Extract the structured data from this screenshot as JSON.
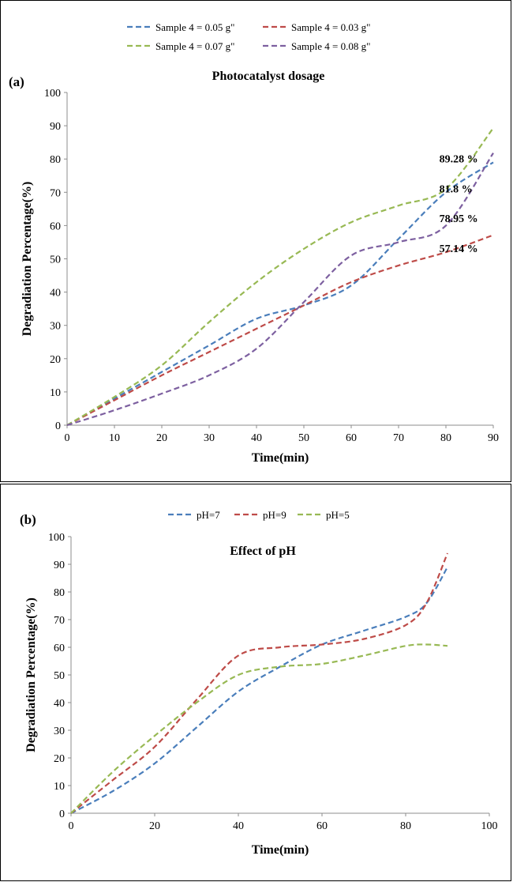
{
  "chart_data": [
    {
      "type": "line",
      "panel_label": "(a)",
      "title": "Photocatalyst dosage",
      "xlabel": "Time(min)",
      "ylabel": "Degradiation Percentage(%)",
      "xlim": [
        0,
        90
      ],
      "ylim": [
        0,
        100
      ],
      "xticks": [
        0,
        10,
        20,
        30,
        40,
        50,
        60,
        70,
        80,
        90
      ],
      "yticks": [
        0,
        10,
        20,
        30,
        40,
        50,
        60,
        70,
        80,
        90,
        100
      ],
      "x": [
        0,
        10,
        20,
        30,
        40,
        50,
        60,
        70,
        80,
        90
      ],
      "series": [
        {
          "name": "Sample 4 = 0.05 g\"",
          "color": "#4a7ebb",
          "values": [
            0,
            8,
            16,
            24,
            32,
            36,
            42,
            56,
            70,
            79
          ]
        },
        {
          "name": "Sample 4 = 0.03 g\"",
          "color": "#be4b48",
          "values": [
            0,
            7.5,
            15,
            22,
            29,
            36,
            43,
            48,
            52,
            57.14
          ]
        },
        {
          "name": "Sample 4 = 0.07 g\"",
          "color": "#98b954",
          "values": [
            0,
            8.5,
            18,
            31,
            43,
            53,
            61,
            66,
            71,
            89.28
          ]
        },
        {
          "name": "Sample 4 = 0.08 g\"",
          "color": "#7d60a0",
          "values": [
            0,
            4.5,
            9.5,
            15,
            23,
            37,
            51,
            55,
            60,
            81.8
          ]
        }
      ],
      "annotations": [
        {
          "text": "89.28 %",
          "x": 78.6,
          "y": 79
        },
        {
          "text": "81.8 %",
          "x": 78.6,
          "y": 70
        },
        {
          "text": "78.95 %",
          "x": 78.6,
          "y": 61
        },
        {
          "text": "57.14 %",
          "x": 78.6,
          "y": 52
        }
      ],
      "legend": "top"
    },
    {
      "type": "line",
      "panel_label": "(b)",
      "title": "Effect of pH",
      "xlabel": "Time(min)",
      "ylabel": "Degradiation Percentage(%)",
      "xlim": [
        0,
        100
      ],
      "ylim": [
        0,
        100
      ],
      "xticks": [
        0,
        20,
        40,
        60,
        80,
        100
      ],
      "yticks": [
        0,
        10,
        20,
        30,
        40,
        50,
        60,
        70,
        80,
        90,
        100
      ],
      "x": [
        0,
        10,
        20,
        30,
        40,
        50,
        60,
        70,
        80,
        85,
        90
      ],
      "series": [
        {
          "name": "pH=7",
          "color": "#4a7ebb",
          "values": [
            0,
            8,
            18,
            31,
            44,
            53,
            61,
            66,
            71,
            76,
            89
          ]
        },
        {
          "name": "pH=9",
          "color": "#be4b48",
          "values": [
            0,
            12,
            24,
            41,
            57,
            60,
            61,
            63,
            68,
            76,
            94
          ]
        },
        {
          "name": "pH=5",
          "color": "#98b954",
          "values": [
            0,
            15,
            28,
            40,
            50,
            53,
            54,
            57,
            60.5,
            61,
            60.5
          ]
        }
      ],
      "legend": "top"
    }
  ]
}
